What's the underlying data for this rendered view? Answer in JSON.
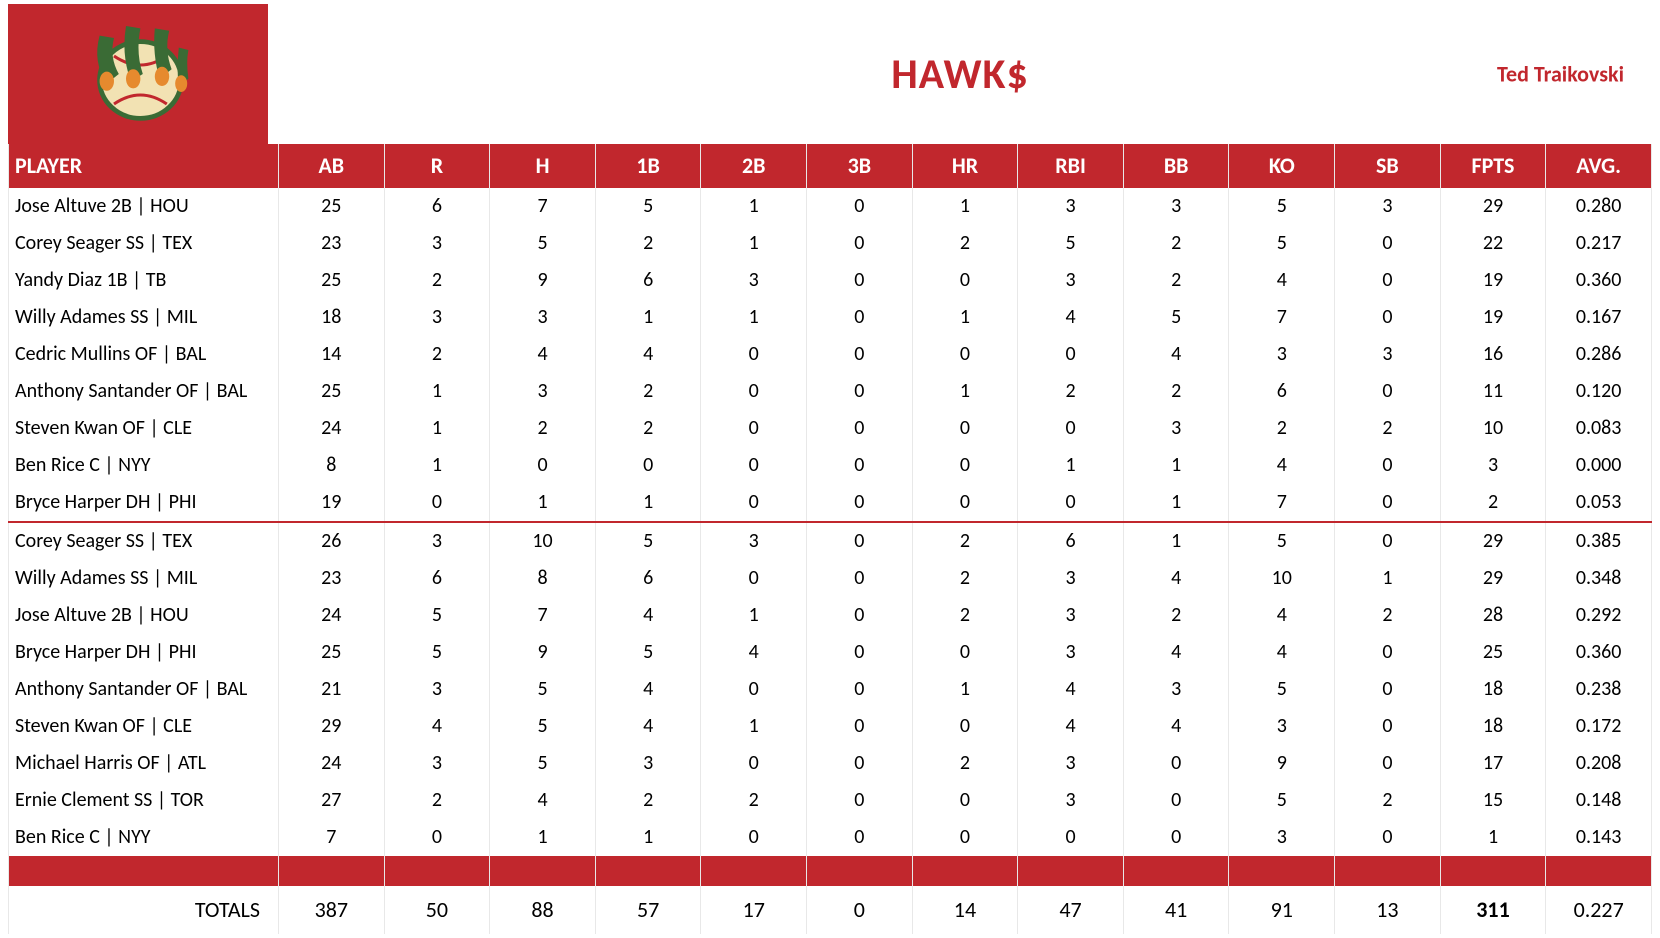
{
  "header": {
    "team_name": "HAWK$",
    "owner": "Ted Traikovski",
    "logo_bg": "#c1272d",
    "logo_colors": {
      "claw": "#3a6b35",
      "ball": "#f2e2b3",
      "stitch": "#c1272d",
      "orange": "#e68a2e"
    }
  },
  "columns": [
    "PLAYER",
    "AB",
    "R",
    "H",
    "1B",
    "2B",
    "3B",
    "HR",
    "RBI",
    "BB",
    "KO",
    "SB",
    "FPTS",
    "AVG."
  ],
  "section_a": [
    {
      "player": "Jose Altuve 2B | HOU",
      "AB": 25,
      "R": 6,
      "H": 7,
      "1B": 5,
      "2B": 1,
      "3B": 0,
      "HR": 1,
      "RBI": 3,
      "BB": 3,
      "KO": 5,
      "SB": 3,
      "FPTS": 29,
      "AVG": "0.280"
    },
    {
      "player": "Corey Seager SS | TEX",
      "AB": 23,
      "R": 3,
      "H": 5,
      "1B": 2,
      "2B": 1,
      "3B": 0,
      "HR": 2,
      "RBI": 5,
      "BB": 2,
      "KO": 5,
      "SB": 0,
      "FPTS": 22,
      "AVG": "0.217"
    },
    {
      "player": "Yandy Diaz 1B | TB",
      "AB": 25,
      "R": 2,
      "H": 9,
      "1B": 6,
      "2B": 3,
      "3B": 0,
      "HR": 0,
      "RBI": 3,
      "BB": 2,
      "KO": 4,
      "SB": 0,
      "FPTS": 19,
      "AVG": "0.360"
    },
    {
      "player": "Willy Adames SS | MIL",
      "AB": 18,
      "R": 3,
      "H": 3,
      "1B": 1,
      "2B": 1,
      "3B": 0,
      "HR": 1,
      "RBI": 4,
      "BB": 5,
      "KO": 7,
      "SB": 0,
      "FPTS": 19,
      "AVG": "0.167"
    },
    {
      "player": "Cedric Mullins OF | BAL",
      "AB": 14,
      "R": 2,
      "H": 4,
      "1B": 4,
      "2B": 0,
      "3B": 0,
      "HR": 0,
      "RBI": 0,
      "BB": 4,
      "KO": 3,
      "SB": 3,
      "FPTS": 16,
      "AVG": "0.286"
    },
    {
      "player": "Anthony Santander OF | BAL",
      "AB": 25,
      "R": 1,
      "H": 3,
      "1B": 2,
      "2B": 0,
      "3B": 0,
      "HR": 1,
      "RBI": 2,
      "BB": 2,
      "KO": 6,
      "SB": 0,
      "FPTS": 11,
      "AVG": "0.120"
    },
    {
      "player": "Steven Kwan OF | CLE",
      "AB": 24,
      "R": 1,
      "H": 2,
      "1B": 2,
      "2B": 0,
      "3B": 0,
      "HR": 0,
      "RBI": 0,
      "BB": 3,
      "KO": 2,
      "SB": 2,
      "FPTS": 10,
      "AVG": "0.083"
    },
    {
      "player": "Ben Rice C | NYY",
      "AB": 8,
      "R": 1,
      "H": 0,
      "1B": 0,
      "2B": 0,
      "3B": 0,
      "HR": 0,
      "RBI": 1,
      "BB": 1,
      "KO": 4,
      "SB": 0,
      "FPTS": 3,
      "AVG": "0.000"
    },
    {
      "player": "Bryce Harper DH | PHI",
      "AB": 19,
      "R": 0,
      "H": 1,
      "1B": 1,
      "2B": 0,
      "3B": 0,
      "HR": 0,
      "RBI": 0,
      "BB": 1,
      "KO": 7,
      "SB": 0,
      "FPTS": 2,
      "AVG": "0.053"
    }
  ],
  "section_b": [
    {
      "player": "Corey Seager SS | TEX",
      "AB": 26,
      "R": 3,
      "H": 10,
      "1B": 5,
      "2B": 3,
      "3B": 0,
      "HR": 2,
      "RBI": 6,
      "BB": 1,
      "KO": 5,
      "SB": 0,
      "FPTS": 29,
      "AVG": "0.385"
    },
    {
      "player": "Willy Adames SS | MIL",
      "AB": 23,
      "R": 6,
      "H": 8,
      "1B": 6,
      "2B": 0,
      "3B": 0,
      "HR": 2,
      "RBI": 3,
      "BB": 4,
      "KO": 10,
      "SB": 1,
      "FPTS": 29,
      "AVG": "0.348"
    },
    {
      "player": "Jose Altuve 2B | HOU",
      "AB": 24,
      "R": 5,
      "H": 7,
      "1B": 4,
      "2B": 1,
      "3B": 0,
      "HR": 2,
      "RBI": 3,
      "BB": 2,
      "KO": 4,
      "SB": 2,
      "FPTS": 28,
      "AVG": "0.292"
    },
    {
      "player": "Bryce Harper DH | PHI",
      "AB": 25,
      "R": 5,
      "H": 9,
      "1B": 5,
      "2B": 4,
      "3B": 0,
      "HR": 0,
      "RBI": 3,
      "BB": 4,
      "KO": 4,
      "SB": 0,
      "FPTS": 25,
      "AVG": "0.360"
    },
    {
      "player": "Anthony Santander OF | BAL",
      "AB": 21,
      "R": 3,
      "H": 5,
      "1B": 4,
      "2B": 0,
      "3B": 0,
      "HR": 1,
      "RBI": 4,
      "BB": 3,
      "KO": 5,
      "SB": 0,
      "FPTS": 18,
      "AVG": "0.238"
    },
    {
      "player": "Steven Kwan OF | CLE",
      "AB": 29,
      "R": 4,
      "H": 5,
      "1B": 4,
      "2B": 1,
      "3B": 0,
      "HR": 0,
      "RBI": 4,
      "BB": 4,
      "KO": 3,
      "SB": 0,
      "FPTS": 18,
      "AVG": "0.172"
    },
    {
      "player": "Michael Harris OF | ATL",
      "AB": 24,
      "R": 3,
      "H": 5,
      "1B": 3,
      "2B": 0,
      "3B": 0,
      "HR": 2,
      "RBI": 3,
      "BB": 0,
      "KO": 9,
      "SB": 0,
      "FPTS": 17,
      "AVG": "0.208"
    },
    {
      "player": "Ernie Clement SS | TOR",
      "AB": 27,
      "R": 2,
      "H": 4,
      "1B": 2,
      "2B": 2,
      "3B": 0,
      "HR": 0,
      "RBI": 3,
      "BB": 0,
      "KO": 5,
      "SB": 2,
      "FPTS": 15,
      "AVG": "0.148"
    },
    {
      "player": "Ben Rice C | NYY",
      "AB": 7,
      "R": 0,
      "H": 1,
      "1B": 1,
      "2B": 0,
      "3B": 0,
      "HR": 0,
      "RBI": 0,
      "BB": 0,
      "KO": 3,
      "SB": 0,
      "FPTS": 1,
      "AVG": "0.143"
    }
  ],
  "totals": {
    "label": "TOTALS",
    "AB": 387,
    "R": 50,
    "H": 88,
    "1B": 57,
    "2B": 17,
    "3B": 0,
    "HR": 14,
    "RBI": 47,
    "BB": 41,
    "KO": 91,
    "SB": 13,
    "FPTS": 311,
    "AVG": "0.227"
  },
  "style": {
    "brand_red": "#c1272d",
    "grid_line": "#e8e8e8",
    "font_family": "Calibri",
    "header_fontsize_pt": 16,
    "body_fontsize_pt": 15,
    "title_fontsize_pt": 32
  }
}
